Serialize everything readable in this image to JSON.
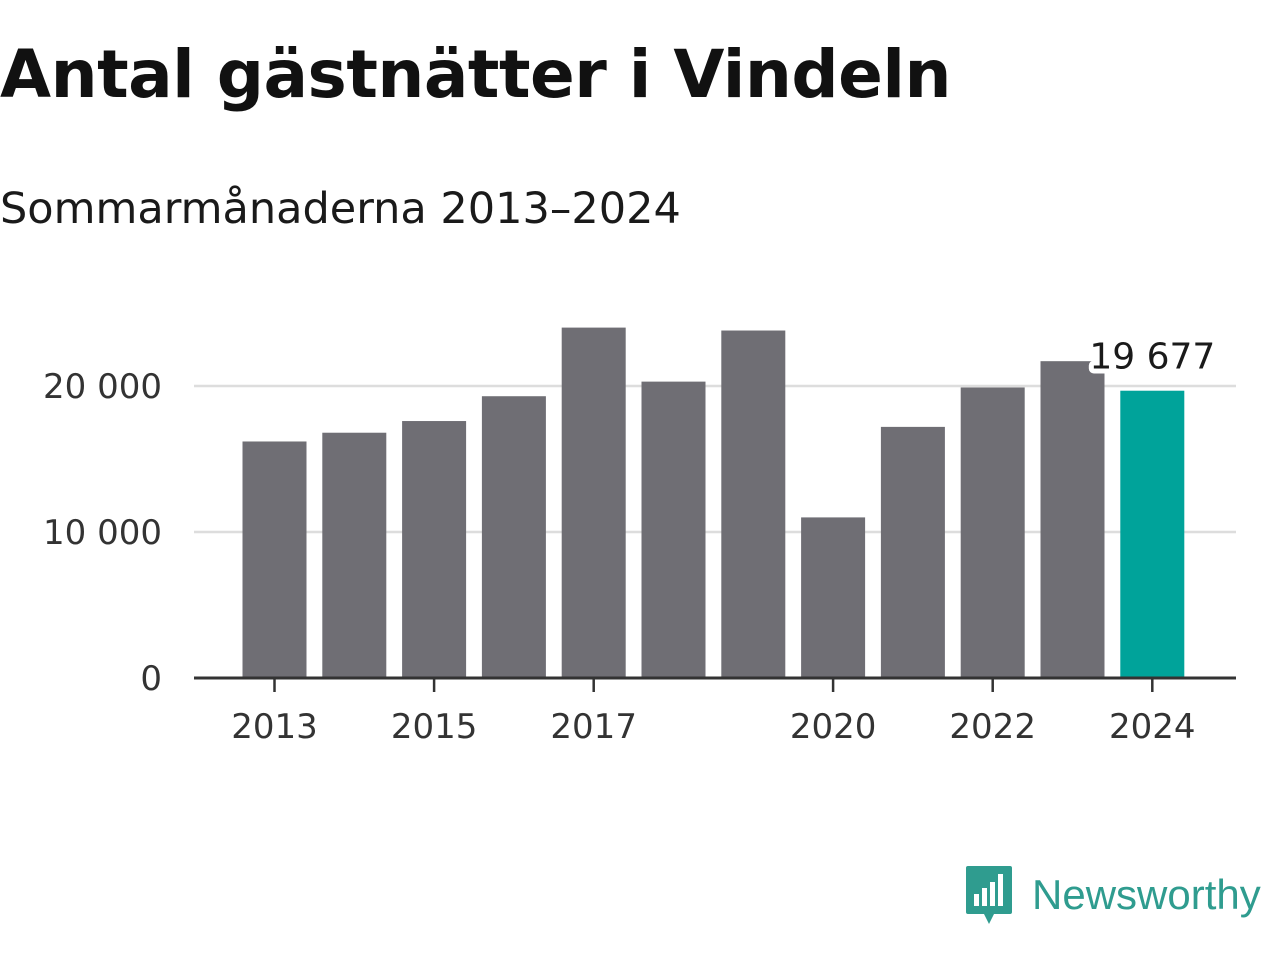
{
  "header": {
    "title": "Antal gästnätter i Vindeln",
    "subtitle": "Sommarmånaderna 2013–2024"
  },
  "brand": {
    "name": "Newsworthy",
    "logo_icon": "newsworthy-chart-icon"
  },
  "colors": {
    "bar": "#6f6e74",
    "highlight": "#00a39a",
    "grid": "#dddddd",
    "axis": "#333333",
    "brand": "#2f9c8f"
  },
  "chart_data": {
    "type": "bar",
    "categories": [
      "2013",
      "2014",
      "2015",
      "2016",
      "2017",
      "2018",
      "2019",
      "2020",
      "2021",
      "2022",
      "2023",
      "2024"
    ],
    "values": [
      16200,
      16800,
      17600,
      19300,
      24000,
      20300,
      23800,
      11000,
      17200,
      19900,
      21700,
      19677
    ],
    "highlight_index": 11,
    "data_labels": [
      {
        "index": 11,
        "text": "19 677"
      }
    ],
    "x_tick_labels": [
      "2013",
      "2015",
      "2017",
      "2020",
      "2022",
      "2024"
    ],
    "y_ticks": [
      0,
      10000,
      20000
    ],
    "y_tick_labels": [
      "0",
      "10 000",
      "20 000"
    ],
    "ylim": [
      0,
      24000
    ],
    "grid": true,
    "xlabel": "",
    "ylabel": ""
  }
}
